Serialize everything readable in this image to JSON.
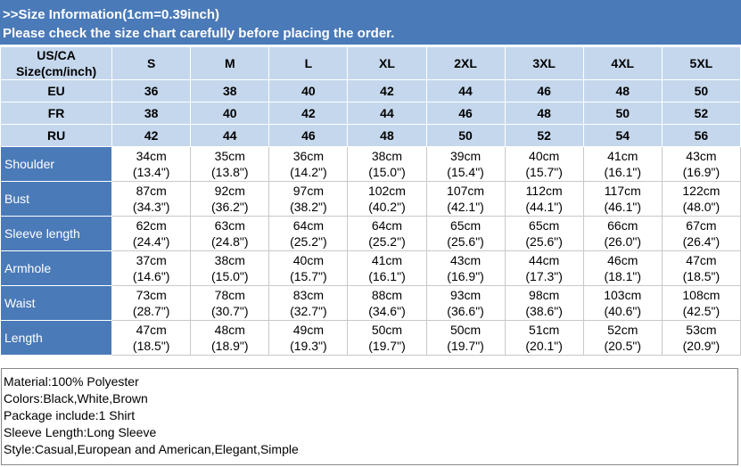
{
  "header": {
    "line1": ">>Size Information(1cm=0.39inch)",
    "line2": "Please check the size chart carefully before placing the order."
  },
  "table": {
    "corner_line1": "US/CA",
    "corner_line2": "Size(cm/inch)",
    "sizes": [
      "S",
      "M",
      "L",
      "XL",
      "2XL",
      "3XL",
      "4XL",
      "5XL"
    ],
    "intl_rows": [
      {
        "label": "EU",
        "values": [
          "36",
          "38",
          "40",
          "42",
          "44",
          "46",
          "48",
          "50"
        ]
      },
      {
        "label": "FR",
        "values": [
          "38",
          "40",
          "42",
          "44",
          "46",
          "48",
          "50",
          "52"
        ]
      },
      {
        "label": "RU",
        "values": [
          "42",
          "44",
          "46",
          "48",
          "50",
          "52",
          "54",
          "56"
        ]
      }
    ],
    "measure_rows": [
      {
        "label": "Shoulder",
        "cm": [
          "34cm",
          "35cm",
          "36cm",
          "38cm",
          "39cm",
          "40cm",
          "41cm",
          "43cm"
        ],
        "inch": [
          "(13.4\")",
          "(13.8\")",
          "(14.2\")",
          "(15.0\")",
          "(15.4\")",
          "(15.7\")",
          "(16.1\")",
          "(16.9\")"
        ]
      },
      {
        "label": "Bust",
        "cm": [
          "87cm",
          "92cm",
          "97cm",
          "102cm",
          "107cm",
          "112cm",
          "117cm",
          "122cm"
        ],
        "inch": [
          "(34.3\")",
          "(36.2\")",
          "(38.2\")",
          "(40.2\")",
          "(42.1\")",
          "(44.1\")",
          "(46.1\")",
          "(48.0\")"
        ]
      },
      {
        "label": "Sleeve length",
        "cm": [
          "62cm",
          "63cm",
          "64cm",
          "64cm",
          "65cm",
          "65cm",
          "66cm",
          "67cm"
        ],
        "inch": [
          "(24.4\")",
          "(24.8\")",
          "(25.2\")",
          "(25.2\")",
          "(25.6\")",
          "(25.6\")",
          "(26.0\")",
          "(26.4\")"
        ]
      },
      {
        "label": "Armhole",
        "cm": [
          "37cm",
          "38cm",
          "40cm",
          "41cm",
          "43cm",
          "44cm",
          "46cm",
          "47cm"
        ],
        "inch": [
          "(14.6\")",
          "(15.0\")",
          "(15.7\")",
          "(16.1\")",
          "(16.9\")",
          "(17.3\")",
          "(18.1\")",
          "(18.5\")"
        ]
      },
      {
        "label": "Waist",
        "cm": [
          "73cm",
          "78cm",
          "83cm",
          "88cm",
          "93cm",
          "98cm",
          "103cm",
          "108cm"
        ],
        "inch": [
          "(28.7\")",
          "(30.7\")",
          "(32.7\")",
          "(34.6\")",
          "(36.6\")",
          "(38.6\")",
          "(40.6\")",
          "(42.5\")"
        ]
      },
      {
        "label": "Length",
        "cm": [
          "47cm",
          "48cm",
          "49cm",
          "50cm",
          "50cm",
          "51cm",
          "52cm",
          "53cm"
        ],
        "inch": [
          "(18.5\")",
          "(18.9\")",
          "(19.3\")",
          "(19.7\")",
          "(19.7\")",
          "(20.1\")",
          "(20.5\")",
          "(20.9\")"
        ]
      }
    ]
  },
  "notes": [
    "Material:100% Polyester",
    "Colors:Black,White,Brown",
    "Package include:1 Shirt",
    "Sleeve Length:Long Sleeve",
    "Style:Casual,European and American,Elegant,Simple"
  ],
  "colors": {
    "header_bg": "#4a7ab8",
    "header_text": "#ffffff",
    "size_header_bg": "#c5d7ec",
    "label_bg": "#4a7ab8"
  }
}
